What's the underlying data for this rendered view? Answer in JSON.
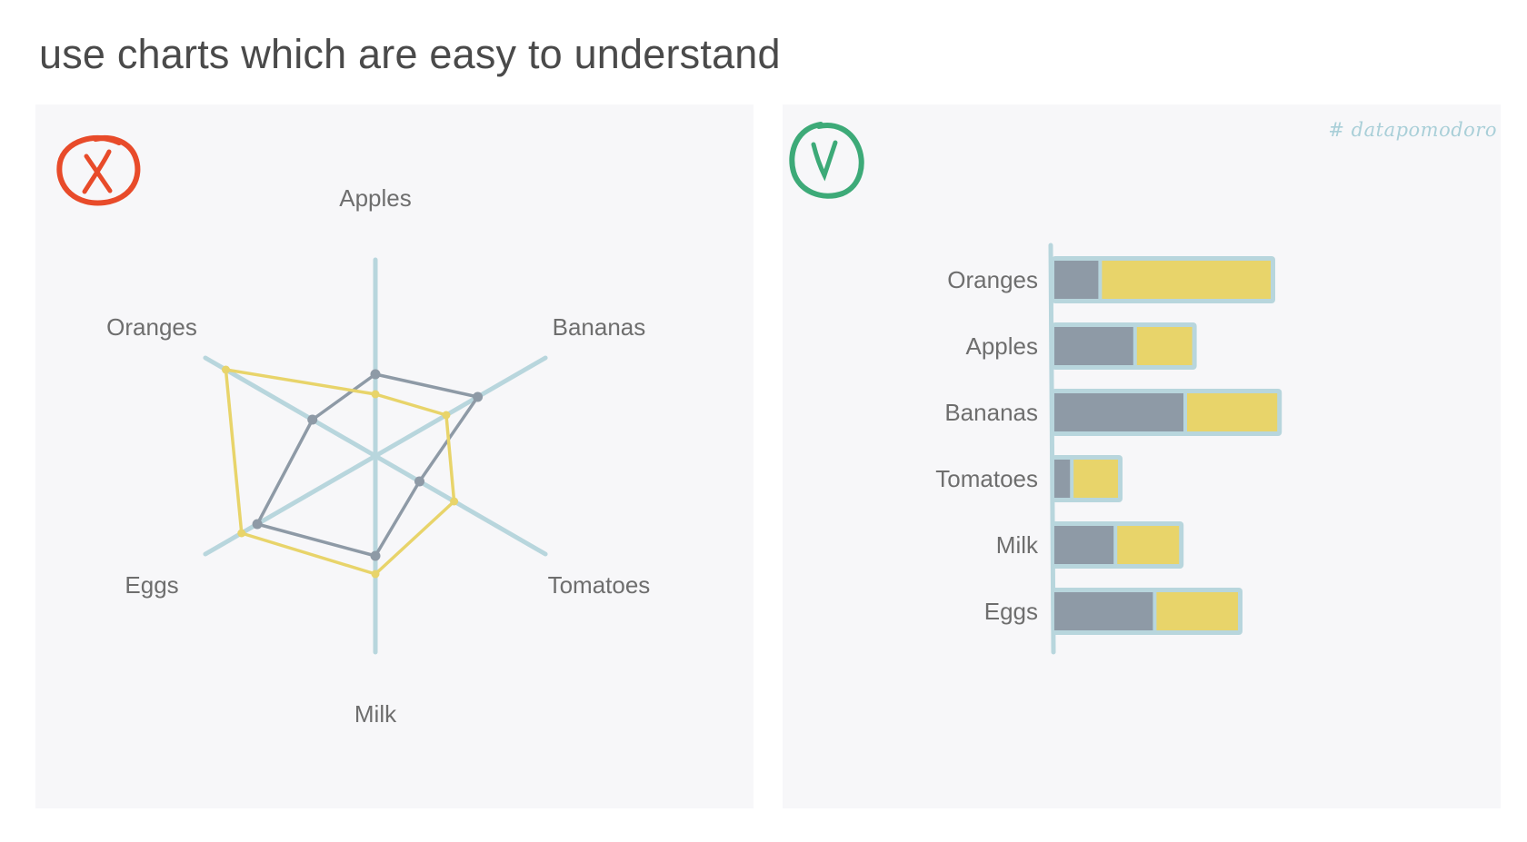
{
  "page": {
    "title": "use charts which are easy to understand"
  },
  "watermark": "# datapomodoro",
  "colors": {
    "series_dark": "#8e9aa6",
    "series_yellow": "#e8d46a",
    "axis": "#b8d6dd",
    "panel_bg": "#f7f7f9",
    "bad_mark": "#e84b2a",
    "good_mark": "#3daa78"
  },
  "icons": {
    "bad": "x-circle-icon",
    "good": "check-circle-icon"
  },
  "chart_data": [
    {
      "type": "radar",
      "categories": [
        "Apples",
        "Bananas",
        "Tomatoes",
        "Milk",
        "Eggs",
        "Oranges"
      ],
      "series": [
        {
          "values": [
            45,
            65,
            28,
            55,
            75,
            40
          ]
        },
        {
          "values": [
            34,
            45,
            50,
            65,
            85,
            95
          ]
        }
      ],
      "rlim": [
        0,
        100
      ],
      "grid": false
    },
    {
      "type": "bar",
      "orientation": "horizontal",
      "stacked": true,
      "categories": [
        "Oranges",
        "Apples",
        "Bananas",
        "Tomatoes",
        "Milk",
        "Eggs"
      ],
      "series": [
        {
          "values": [
            21,
            37,
            60,
            8,
            28,
            46
          ]
        },
        {
          "values": [
            79,
            27,
            43,
            22,
            30,
            39
          ]
        }
      ],
      "grid": false
    }
  ]
}
